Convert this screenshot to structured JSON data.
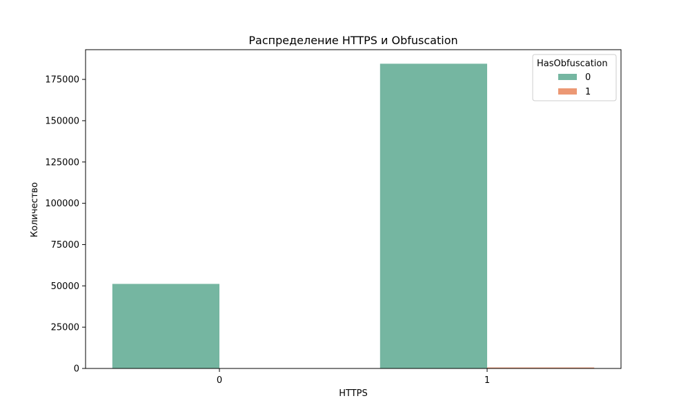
{
  "chart_data": {
    "type": "bar",
    "title": "Распределение HTTPS и Obfuscation",
    "xlabel": "HTTPS",
    "ylabel": "Количество",
    "categories": [
      "0",
      "1"
    ],
    "series": [
      {
        "name": "0",
        "values": [
          51200,
          184500
        ],
        "color": "#75b6a1"
      },
      {
        "name": "1",
        "values": [
          0,
          600
        ],
        "color": "#ec9874"
      }
    ],
    "ylim": [
      0,
      193000
    ],
    "yticks": [
      0,
      25000,
      50000,
      75000,
      100000,
      125000,
      150000,
      175000
    ],
    "legend": {
      "title": "HasObfuscation",
      "placement": "top-right"
    },
    "grid": false
  }
}
